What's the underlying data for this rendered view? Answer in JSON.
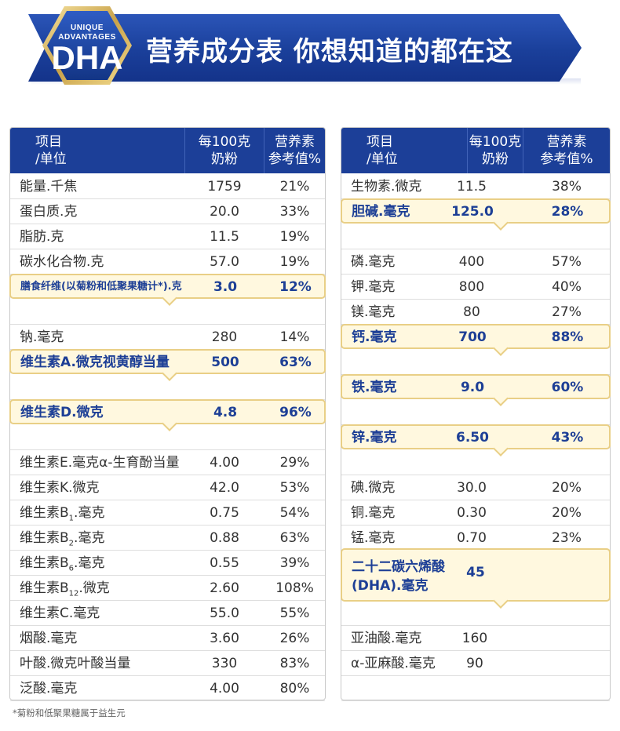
{
  "banner": {
    "badge_line1": "UNIQUE",
    "badge_line2": "ADVANTAGES",
    "badge_main": "DHA",
    "title": "营养成分表  你想知道的都在这"
  },
  "left_table": {
    "headers": {
      "item_line1": "项目",
      "item_line2": "/单位",
      "per100_line1": "每100克",
      "per100_line2": "奶粉",
      "nrv_line1": "营养素",
      "nrv_line2": "参考值%"
    },
    "rows": [
      {
        "name": "能量.千焦",
        "value": "1759",
        "nrv": "21%"
      },
      {
        "name": "蛋白质.克",
        "value": "20.0",
        "nrv": "33%"
      },
      {
        "name": "脂肪.克",
        "value": "11.5",
        "nrv": "19%"
      },
      {
        "name": "碳水化合物.克",
        "value": "57.0",
        "nrv": "19%"
      },
      {
        "name": "膳食纤维(以菊粉和低聚果糖计*).克",
        "value": "3.0",
        "nrv": "12%",
        "highlight": true
      },
      {
        "name": "",
        "value": "",
        "nrv": ""
      },
      {
        "name": "钠.毫克",
        "value": "280",
        "nrv": "14%"
      },
      {
        "name": "维生素A.微克视黄醇当量",
        "value": "500",
        "nrv": "63%",
        "highlight": true
      },
      {
        "name": "",
        "value": "",
        "nrv": ""
      },
      {
        "name": "维生素D.微克",
        "value": "4.8",
        "nrv": "96%",
        "highlight": true
      },
      {
        "name": "",
        "value": "",
        "nrv": ""
      },
      {
        "name": "维生素E.毫克α-生育酚当量",
        "value": "4.00",
        "nrv": "29%"
      },
      {
        "name": "维生素K.微克",
        "value": "42.0",
        "nrv": "53%"
      },
      {
        "name_main": "维生素B",
        "name_sub": "1",
        "name_tail": ".毫克",
        "value": "0.75",
        "nrv": "54%"
      },
      {
        "name_main": "维生素B",
        "name_sub": "2",
        "name_tail": ".毫克",
        "value": "0.88",
        "nrv": "63%"
      },
      {
        "name_main": "维生素B",
        "name_sub": "6",
        "name_tail": ".毫克",
        "value": "0.55",
        "nrv": "39%"
      },
      {
        "name_main": "维生素B",
        "name_sub": "12",
        "name_tail": ".微克",
        "value": "2.60",
        "nrv": "108%"
      },
      {
        "name": "维生素C.毫克",
        "value": "55.0",
        "nrv": "55%"
      },
      {
        "name": "烟酸.毫克",
        "value": "3.60",
        "nrv": "26%"
      },
      {
        "name": "叶酸.微克叶酸当量",
        "value": "330",
        "nrv": "83%"
      },
      {
        "name": "泛酸.毫克",
        "value": "4.00",
        "nrv": "80%"
      }
    ]
  },
  "right_table": {
    "headers": {
      "item_line1": "项目",
      "item_line2": "/单位",
      "per100_line1": "每100克",
      "per100_line2": "奶粉",
      "nrv_line1": "营养素",
      "nrv_line2": "参考值%"
    },
    "rows": [
      {
        "name": "生物素.微克",
        "value": "11.5",
        "nrv": "38%"
      },
      {
        "name": "胆碱.毫克",
        "value": "125.0",
        "nrv": "28%",
        "highlight": true
      },
      {
        "name": "",
        "value": "",
        "nrv": ""
      },
      {
        "name": "磷.毫克",
        "value": "400",
        "nrv": "57%"
      },
      {
        "name": "钾.毫克",
        "value": "800",
        "nrv": "40%"
      },
      {
        "name": "镁.毫克",
        "value": "80",
        "nrv": "27%"
      },
      {
        "name": "钙.毫克",
        "value": "700",
        "nrv": "88%",
        "highlight": true
      },
      {
        "name": "",
        "value": "",
        "nrv": ""
      },
      {
        "name": "铁.毫克",
        "value": "9.0",
        "nrv": "60%",
        "highlight": true
      },
      {
        "name": "",
        "value": "",
        "nrv": ""
      },
      {
        "name": "锌.毫克",
        "value": "6.50",
        "nrv": "43%",
        "highlight": true
      },
      {
        "name": "",
        "value": "",
        "nrv": ""
      },
      {
        "name": "碘.微克",
        "value": "30.0",
        "nrv": "20%"
      },
      {
        "name": "铜.毫克",
        "value": "0.30",
        "nrv": "20%"
      },
      {
        "name": "锰.毫克",
        "value": "0.70",
        "nrv": "23%"
      },
      {
        "name_line1": "二十二碳六烯酸",
        "name_line2": "(DHA).毫克",
        "value": "45",
        "nrv": "",
        "highlight": true,
        "double": true
      },
      {
        "name": "",
        "value": "",
        "nrv": ""
      },
      {
        "name": "亚油酸.毫克",
        "value": "160",
        "nrv": ""
      },
      {
        "name": "α-亚麻酸.毫克",
        "value": "90",
        "nrv": ""
      },
      {
        "name": "",
        "value": "",
        "nrv": ""
      }
    ]
  },
  "footnote": "*菊粉和低聚果糖属于益生元",
  "colors": {
    "header_blue": "#1c3f98",
    "highlight_fill": "#fff8df",
    "highlight_border": "#e9cf86",
    "highlight_text": "#1d3f96"
  }
}
